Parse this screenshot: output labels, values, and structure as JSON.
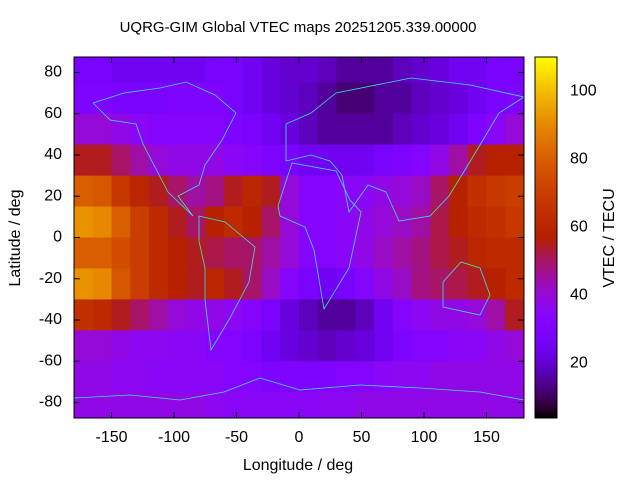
{
  "chart_data": {
    "type": "heatmap",
    "title": "UQRG-GIM Global VTEC maps 20251205.339.00000",
    "xlabel": "Longitude / deg",
    "ylabel": "Latitude / deg",
    "colorbar_label": "VTEC / TECU",
    "xlim": [
      -180,
      180
    ],
    "ylim": [
      -87.5,
      87.5
    ],
    "xticks": [
      -150,
      -100,
      -50,
      0,
      50,
      100,
      150
    ],
    "yticks": [
      -80,
      -60,
      -40,
      -20,
      0,
      20,
      40,
      60,
      80
    ],
    "clim": [
      4,
      110
    ],
    "cticks": [
      20,
      40,
      60,
      80,
      100
    ],
    "palette": "rgbformulae 7,5,15",
    "coastline_color": "#40e0e0",
    "x": [
      -172.5,
      -157.5,
      -142.5,
      -127.5,
      -112.5,
      -97.5,
      -82.5,
      -67.5,
      -52.5,
      -37.5,
      -22.5,
      -7.5,
      7.5,
      22.5,
      37.5,
      52.5,
      67.5,
      82.5,
      97.5,
      112.5,
      127.5,
      142.5,
      157.5,
      172.5
    ],
    "y": [
      82.5,
      67.5,
      52.5,
      37.5,
      22.5,
      7.5,
      -7.5,
      -22.5,
      -37.5,
      -52.5,
      -67.5,
      -82.5
    ],
    "z": [
      [
        28,
        28,
        25,
        25,
        25,
        25,
        25,
        28,
        28,
        25,
        22,
        20,
        20,
        18,
        15,
        15,
        15,
        18,
        20,
        22,
        25,
        25,
        28,
        28
      ],
      [
        30,
        30,
        28,
        28,
        28,
        30,
        30,
        30,
        28,
        25,
        22,
        20,
        18,
        15,
        12,
        12,
        15,
        15,
        18,
        20,
        22,
        25,
        28,
        30
      ],
      [
        40,
        40,
        38,
        35,
        33,
        33,
        33,
        33,
        30,
        28,
        25,
        22,
        18,
        15,
        15,
        15,
        15,
        18,
        20,
        22,
        25,
        30,
        35,
        40
      ],
      [
        55,
        55,
        50,
        45,
        40,
        38,
        38,
        38,
        35,
        33,
        30,
        28,
        25,
        25,
        25,
        25,
        28,
        30,
        32,
        38,
        45,
        55,
        58,
        58
      ],
      [
        80,
        78,
        68,
        60,
        55,
        50,
        45,
        48,
        55,
        60,
        55,
        40,
        33,
        33,
        35,
        35,
        38,
        40,
        42,
        50,
        58,
        65,
        68,
        70
      ],
      [
        92,
        90,
        80,
        70,
        62,
        55,
        50,
        58,
        62,
        58,
        50,
        40,
        33,
        33,
        35,
        38,
        40,
        42,
        45,
        52,
        58,
        62,
        65,
        68
      ],
      [
        80,
        80,
        75,
        70,
        62,
        58,
        55,
        52,
        50,
        50,
        45,
        40,
        33,
        33,
        35,
        38,
        42,
        45,
        48,
        52,
        55,
        60,
        62,
        62
      ],
      [
        92,
        90,
        78,
        70,
        62,
        58,
        55,
        60,
        55,
        50,
        42,
        33,
        28,
        25,
        28,
        33,
        38,
        42,
        48,
        50,
        52,
        55,
        58,
        62
      ],
      [
        65,
        62,
        55,
        50,
        45,
        40,
        38,
        38,
        36,
        33,
        28,
        22,
        18,
        15,
        15,
        18,
        25,
        33,
        36,
        38,
        38,
        40,
        45,
        55
      ],
      [
        40,
        40,
        38,
        36,
        36,
        35,
        35,
        33,
        32,
        30,
        25,
        22,
        20,
        18,
        20,
        22,
        25,
        30,
        32,
        33,
        35,
        35,
        38,
        40
      ],
      [
        38,
        38,
        36,
        36,
        35,
        35,
        35,
        35,
        33,
        32,
        30,
        30,
        30,
        30,
        32,
        33,
        35,
        36,
        36,
        38,
        38,
        38,
        38,
        38
      ],
      [
        38,
        38,
        38,
        38,
        38,
        38,
        38,
        36,
        35,
        35,
        35,
        35,
        35,
        36,
        36,
        38,
        38,
        38,
        38,
        38,
        38,
        38,
        38,
        38
      ]
    ]
  }
}
